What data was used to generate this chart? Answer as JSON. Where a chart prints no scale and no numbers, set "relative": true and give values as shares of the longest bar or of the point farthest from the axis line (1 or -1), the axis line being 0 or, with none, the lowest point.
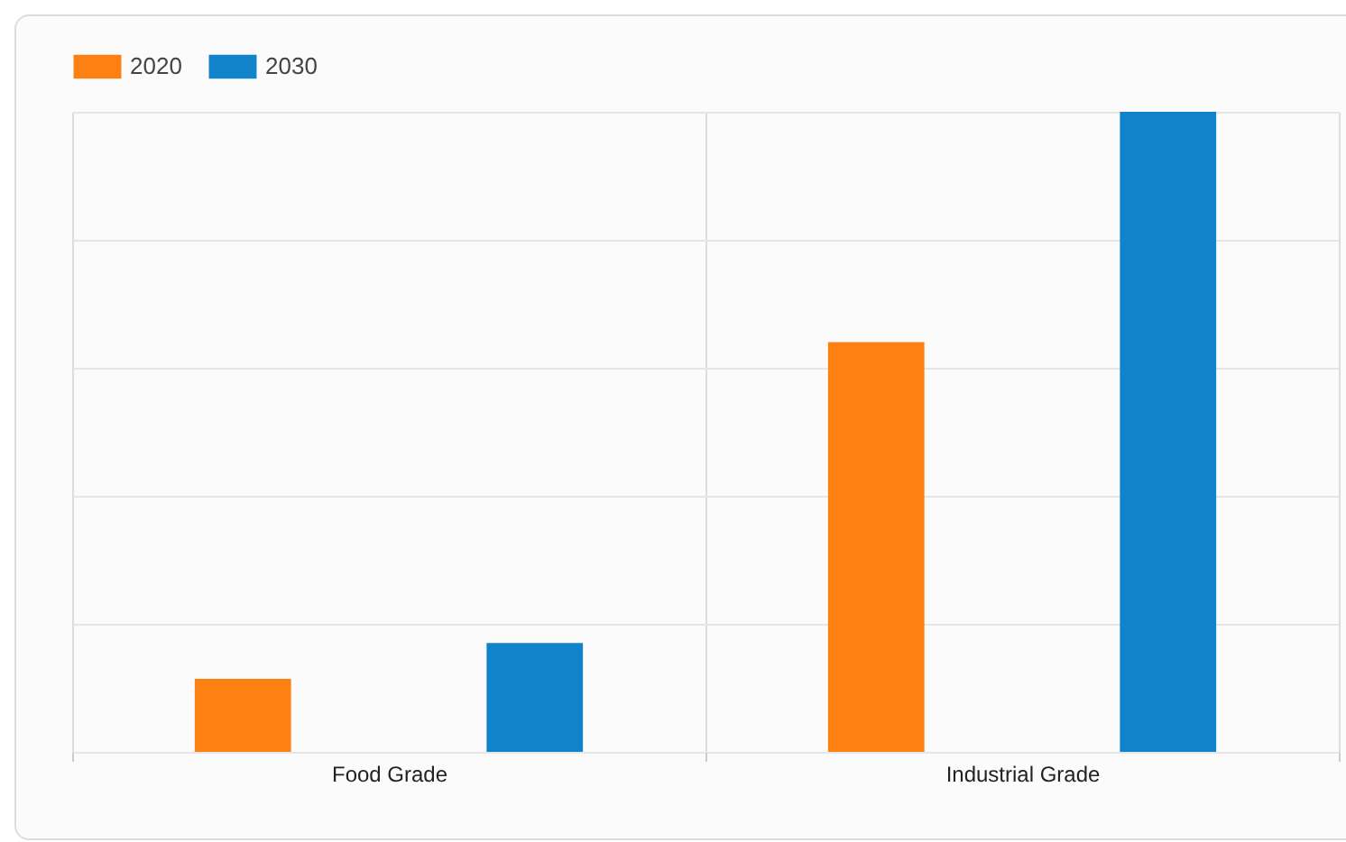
{
  "chart_data": {
    "type": "bar",
    "relative": true,
    "categories": [
      "Food Grade",
      "Industrial Grade"
    ],
    "series": [
      {
        "name": "2020",
        "color": "#fd8112",
        "values": [
          0.114,
          0.64
        ]
      },
      {
        "name": "2030",
        "color": "#1083cb",
        "values": [
          0.17,
          1
        ]
      }
    ],
    "grid": true,
    "legend": "top"
  }
}
